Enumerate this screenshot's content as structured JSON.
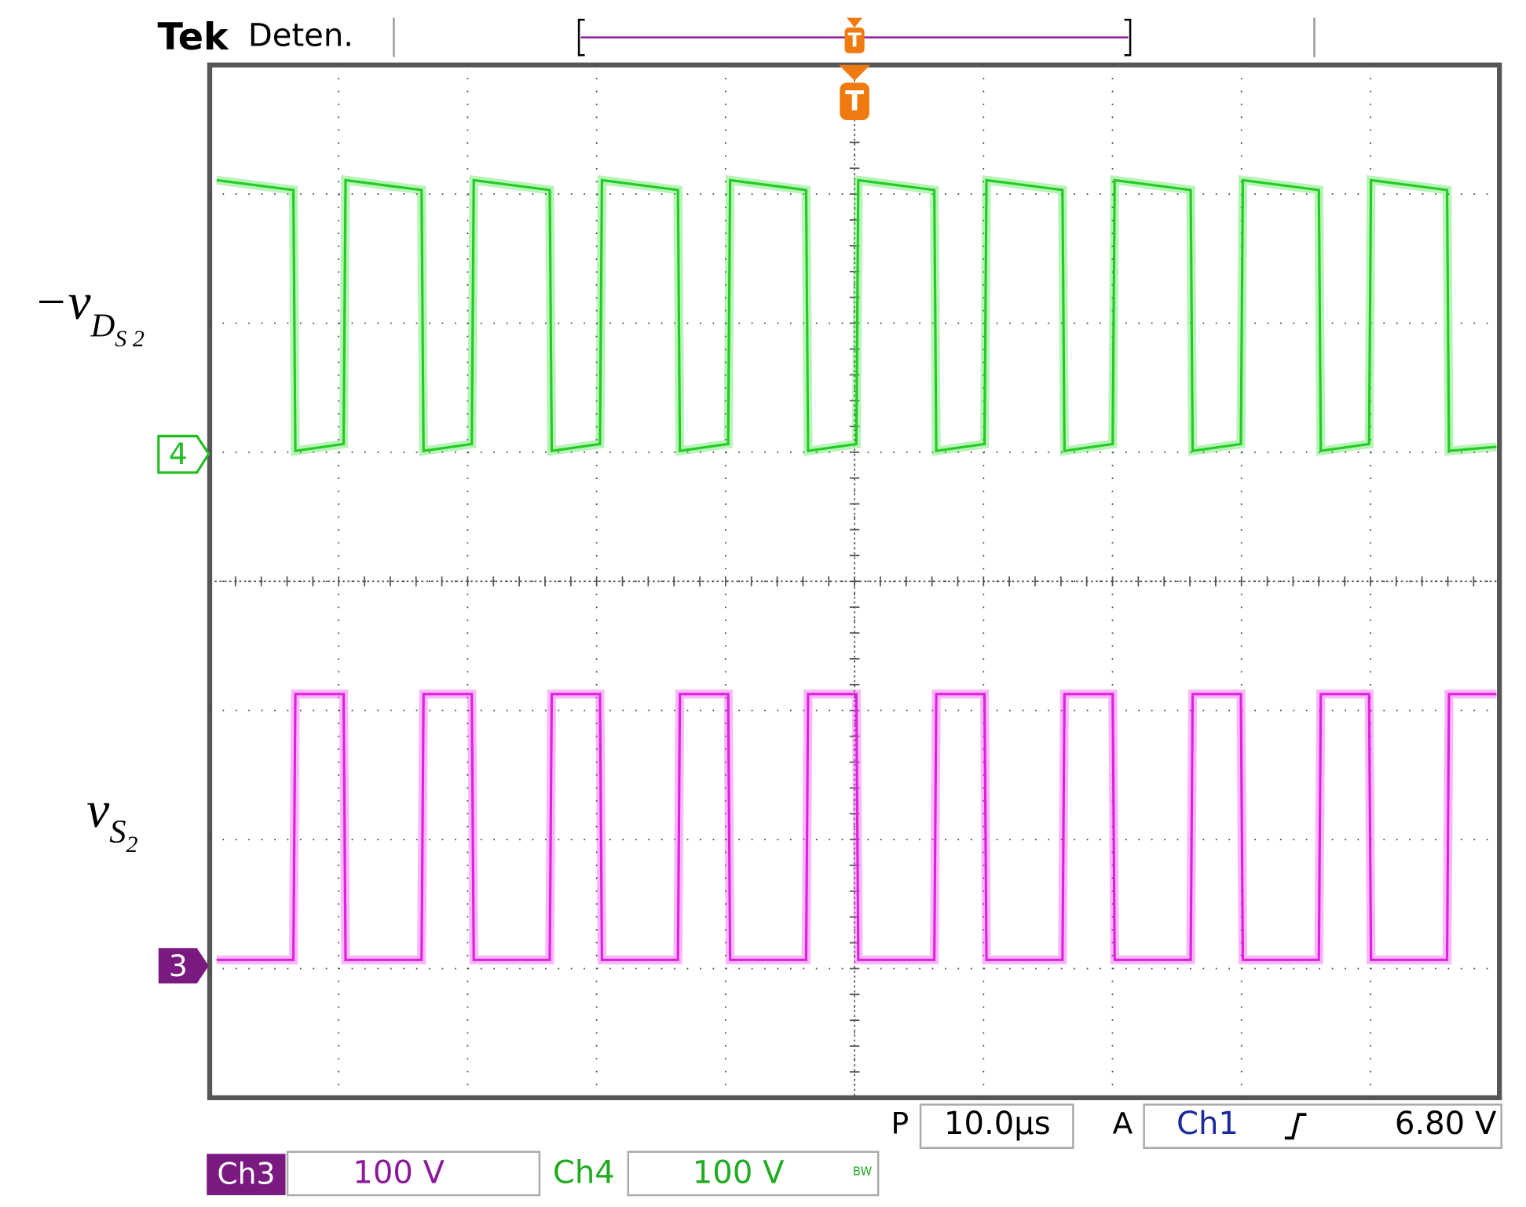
{
  "header": {
    "brand": "Tek",
    "status": "Deten.",
    "trigger_marker": "T"
  },
  "screen": {
    "trigger_marker": "T",
    "channels": [
      {
        "marker": "4",
        "label": "−v",
        "sub": "D",
        "subsub": "S 2"
      },
      {
        "marker": "3",
        "label": "v",
        "sub": "S",
        "subsub": "2"
      }
    ]
  },
  "footer": {
    "timebase_prefix": "P",
    "timebase": "10.0µs",
    "trigger_prefix": "A",
    "trigger_source": "Ch1",
    "trigger_level": "6.80 V",
    "ch3_name": "Ch3",
    "ch3_scale": "100 V",
    "ch4_name": "Ch4",
    "ch4_scale": "100 V",
    "bandwidth": "BW"
  }
}
